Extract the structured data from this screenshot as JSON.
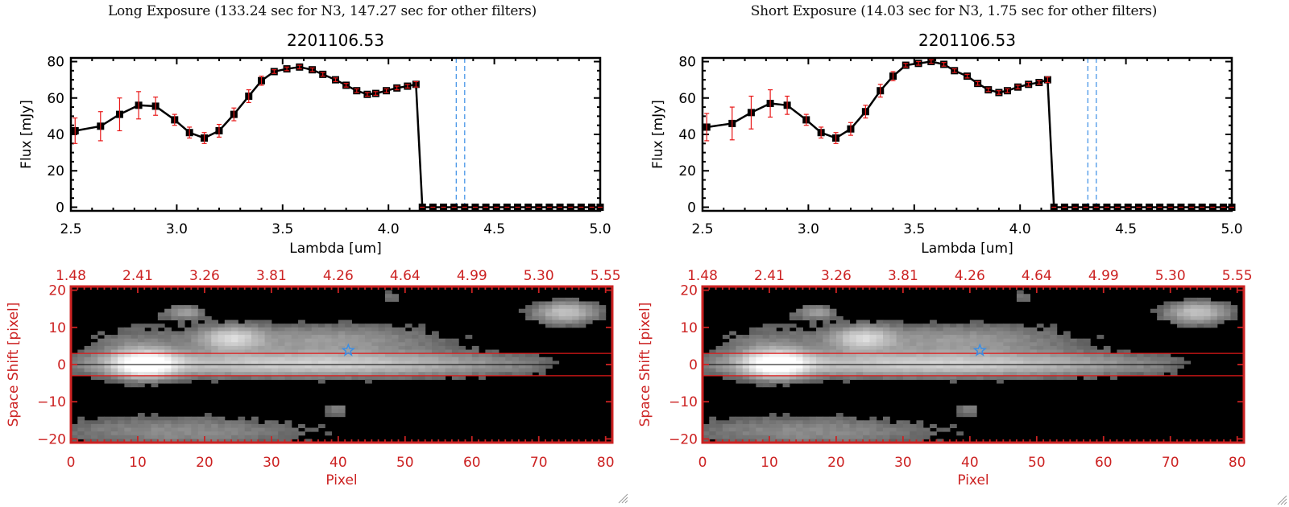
{
  "panels": [
    {
      "id": "long",
      "exposure_title": "Long Exposure (133.24 sec for N3, 147.27 sec for other filters)"
    },
    {
      "id": "short",
      "exposure_title": "Short Exposure (14.03 sec for N3, 1.75 sec for other filters)"
    }
  ],
  "colors": {
    "axis": "#000000",
    "marker": "#000000",
    "errorbar": "#e81818",
    "image_axis": "#cc2222",
    "vline": "#3a8ee6",
    "zero_line": "#e81818",
    "star": "#3a8ee6"
  },
  "chart_data": [
    {
      "type": "line",
      "panel": "long",
      "title": "2201106.53",
      "xlabel": "Lambda [um]",
      "ylabel": "Flux [mJy]",
      "xlim": [
        2.5,
        5.0
      ],
      "ylim": [
        -2,
        82
      ],
      "xticks": [
        2.5,
        3.0,
        3.5,
        4.0,
        4.5,
        5.0
      ],
      "xtick_labels": [
        "2.5",
        "3.0",
        "3.5",
        "4.0",
        "4.5",
        "5.0"
      ],
      "yticks": [
        0,
        20,
        40,
        60,
        80
      ],
      "ytick_labels": [
        "0",
        "20",
        "40",
        "60",
        "80"
      ],
      "vlines": [
        4.32,
        4.36
      ],
      "zero_line": 0,
      "series": [
        {
          "name": "flux",
          "x": [
            2.52,
            2.64,
            2.73,
            2.82,
            2.9,
            2.99,
            3.06,
            3.13,
            3.2,
            3.27,
            3.34,
            3.4,
            3.46,
            3.52,
            3.58,
            3.64,
            3.69,
            3.75,
            3.8,
            3.85,
            3.9,
            3.94,
            3.99,
            4.04,
            4.09,
            4.13,
            4.16,
            4.21,
            4.26,
            4.31,
            4.36,
            4.41,
            4.46,
            4.51,
            4.56,
            4.61,
            4.66,
            4.71,
            4.76,
            4.81,
            4.86,
            4.91,
            4.96,
            5.0
          ],
          "y": [
            42,
            44.5,
            51,
            56,
            55.5,
            48,
            41,
            38,
            42,
            51,
            61,
            69.5,
            74.5,
            76,
            77,
            75.5,
            73,
            70,
            67,
            64,
            62,
            62.5,
            64,
            65.5,
            66.5,
            67.5,
            0,
            0,
            0,
            0,
            0,
            0,
            0,
            0,
            0,
            0,
            0,
            0,
            0,
            0,
            0,
            0,
            0,
            0
          ],
          "err": [
            7,
            8,
            9,
            7.5,
            5,
            3,
            3,
            3,
            3.5,
            3.5,
            3.5,
            2.5,
            1,
            1,
            1,
            1,
            1,
            1,
            1,
            1,
            1,
            1,
            1,
            1,
            1,
            1.5,
            0,
            0,
            0,
            0,
            0,
            0,
            0,
            0,
            0,
            0,
            0,
            0,
            0,
            0,
            0,
            0,
            0,
            0
          ]
        }
      ]
    },
    {
      "type": "heatmap",
      "panel": "long",
      "xlabel": "Pixel",
      "ylabel": "Space Shift [pixel]",
      "xlim": [
        0,
        81
      ],
      "ylim": [
        -21,
        21
      ],
      "xticks": [
        0,
        10,
        20,
        30,
        40,
        50,
        60,
        70,
        80
      ],
      "xtick_labels": [
        "0",
        "10",
        "20",
        "30",
        "40",
        "50",
        "60",
        "70",
        "80"
      ],
      "yticks": [
        -20,
        -10,
        0,
        10,
        20
      ],
      "ytick_labels": [
        "−20",
        "−10",
        "0",
        "10",
        "20"
      ],
      "top_axis_ticks": [
        0,
        10,
        20,
        30,
        40,
        50,
        60,
        70,
        80
      ],
      "top_axis_labels": [
        "1.48",
        "2.41",
        "3.26",
        "3.81",
        "4.26",
        "4.64",
        "4.99",
        "5.30",
        "5.55"
      ],
      "aperture": [
        -3,
        3
      ],
      "center_line": 0,
      "star_marker": {
        "x": 41.5,
        "y": 3.8
      },
      "sources": [
        {
          "x": 11,
          "y": 0,
          "amp": 1.0,
          "sx": 3.2,
          "sy": 2.4
        },
        {
          "x": 35,
          "y": 0,
          "amp": 0.62,
          "sx": 22,
          "sy": 2.2
        },
        {
          "x": 24,
          "y": 7,
          "amp": 0.55,
          "sx": 3,
          "sy": 2.2
        },
        {
          "x": 38,
          "y": 6.5,
          "amp": 0.32,
          "sx": 12,
          "sy": 3
        },
        {
          "x": 17,
          "y": 14,
          "amp": 0.32,
          "sx": 2.2,
          "sy": 1.3
        },
        {
          "x": 74,
          "y": 14,
          "amp": 0.55,
          "sx": 3.2,
          "sy": 2
        },
        {
          "x": 16,
          "y": -18,
          "amp": 0.25,
          "sx": 14,
          "sy": 3
        },
        {
          "x": 40,
          "y": -12,
          "amp": 0.2,
          "sx": 1.2,
          "sy": 1.2
        },
        {
          "x": 10,
          "y": 5,
          "amp": 0.18,
          "sx": 6,
          "sy": 4
        },
        {
          "x": 48,
          "y": 18,
          "amp": 0.18,
          "sx": 1,
          "sy": 1.2
        }
      ]
    },
    {
      "type": "line",
      "panel": "short",
      "title": "2201106.53",
      "xlabel": "Lambda [um]",
      "ylabel": "Flux [mJy]",
      "xlim": [
        2.5,
        5.0
      ],
      "ylim": [
        -2,
        82
      ],
      "xticks": [
        2.5,
        3.0,
        3.5,
        4.0,
        4.5,
        5.0
      ],
      "xtick_labels": [
        "2.5",
        "3.0",
        "3.5",
        "4.0",
        "4.5",
        "5.0"
      ],
      "yticks": [
        0,
        20,
        40,
        60,
        80
      ],
      "ytick_labels": [
        "0",
        "20",
        "40",
        "60",
        "80"
      ],
      "vlines": [
        4.32,
        4.36
      ],
      "zero_line": 0,
      "series": [
        {
          "name": "flux",
          "x": [
            2.52,
            2.64,
            2.73,
            2.82,
            2.9,
            2.99,
            3.06,
            3.13,
            3.2,
            3.27,
            3.34,
            3.4,
            3.46,
            3.52,
            3.58,
            3.64,
            3.69,
            3.75,
            3.8,
            3.85,
            3.9,
            3.94,
            3.99,
            4.04,
            4.09,
            4.13,
            4.16,
            4.21,
            4.26,
            4.31,
            4.36,
            4.41,
            4.46,
            4.51,
            4.56,
            4.61,
            4.66,
            4.71,
            4.76,
            4.81,
            4.86,
            4.91,
            4.96,
            5.0
          ],
          "y": [
            44,
            46,
            52,
            57,
            56,
            48,
            41,
            38,
            43,
            52.5,
            64,
            72,
            78,
            79,
            80,
            78.5,
            75,
            72,
            68,
            64.5,
            63,
            64,
            66,
            67.5,
            68.5,
            70,
            0,
            0,
            0,
            0,
            0,
            0,
            0,
            0,
            0,
            0,
            0,
            0,
            0,
            0,
            0,
            0,
            0,
            0
          ],
          "err": [
            7.5,
            9,
            9,
            7.5,
            5,
            3,
            3,
            3,
            3.5,
            3.5,
            3.5,
            2.5,
            1,
            1,
            1,
            1,
            1,
            1,
            1,
            1,
            1,
            1,
            1,
            1,
            1,
            1.5,
            0,
            0,
            0,
            0,
            0,
            0,
            0,
            0,
            0,
            0,
            0,
            0,
            0,
            0,
            0,
            0,
            0,
            0
          ]
        }
      ]
    },
    {
      "type": "heatmap",
      "panel": "short",
      "xlabel": "Pixel",
      "ylabel": "Space Shift [pixel]",
      "xlim": [
        0,
        81
      ],
      "ylim": [
        -21,
        21
      ],
      "xticks": [
        0,
        10,
        20,
        30,
        40,
        50,
        60,
        70,
        80
      ],
      "xtick_labels": [
        "0",
        "10",
        "20",
        "30",
        "40",
        "50",
        "60",
        "70",
        "80"
      ],
      "yticks": [
        -20,
        -10,
        0,
        10,
        20
      ],
      "ytick_labels": [
        "−20",
        "−10",
        "0",
        "10",
        "20"
      ],
      "top_axis_ticks": [
        0,
        10,
        20,
        30,
        40,
        50,
        60,
        70,
        80
      ],
      "top_axis_labels": [
        "1.48",
        "2.41",
        "3.26",
        "3.81",
        "4.26",
        "4.64",
        "4.99",
        "5.30",
        "5.55"
      ],
      "aperture": [
        -3,
        3
      ],
      "center_line": 0,
      "star_marker": {
        "x": 41.5,
        "y": 3.8
      },
      "sources": [
        {
          "x": 11,
          "y": 0,
          "amp": 1.0,
          "sx": 3.2,
          "sy": 2.4
        },
        {
          "x": 35,
          "y": 0,
          "amp": 0.62,
          "sx": 22,
          "sy": 2.2
        },
        {
          "x": 24,
          "y": 7,
          "amp": 0.55,
          "sx": 3,
          "sy": 2.2
        },
        {
          "x": 38,
          "y": 6.5,
          "amp": 0.32,
          "sx": 12,
          "sy": 3
        },
        {
          "x": 17,
          "y": 14,
          "amp": 0.32,
          "sx": 2.2,
          "sy": 1.3
        },
        {
          "x": 74,
          "y": 14,
          "amp": 0.55,
          "sx": 3.2,
          "sy": 2
        },
        {
          "x": 16,
          "y": -18,
          "amp": 0.25,
          "sx": 14,
          "sy": 3
        },
        {
          "x": 40,
          "y": -12,
          "amp": 0.2,
          "sx": 1.2,
          "sy": 1.2
        },
        {
          "x": 10,
          "y": 5,
          "amp": 0.18,
          "sx": 6,
          "sy": 4
        },
        {
          "x": 48,
          "y": 18,
          "amp": 0.18,
          "sx": 1,
          "sy": 1.2
        }
      ]
    }
  ]
}
